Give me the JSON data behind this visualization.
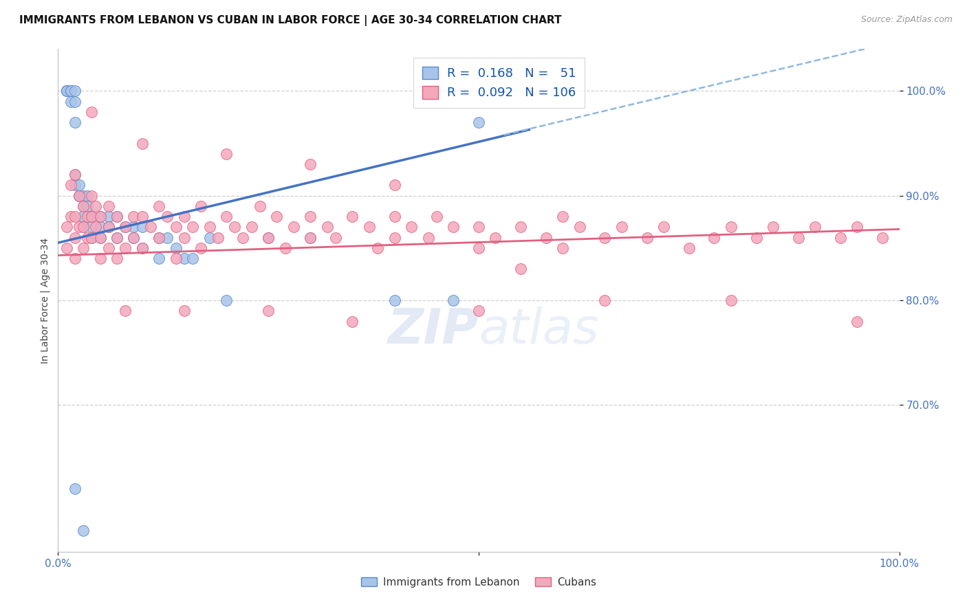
{
  "title": "IMMIGRANTS FROM LEBANON VS CUBAN IN LABOR FORCE | AGE 30-34 CORRELATION CHART",
  "source": "Source: ZipAtlas.com",
  "ylabel": "In Labor Force | Age 30-34",
  "legend_label_1": "Immigrants from Lebanon",
  "legend_label_2": "Cubans",
  "r_lebanon": 0.168,
  "n_lebanon": 51,
  "r_cuban": 0.092,
  "n_cuban": 106,
  "color_lebanon_fill": "#a8c4e8",
  "color_cuban_fill": "#f4a8bc",
  "color_lebanon_edge": "#5588cc",
  "color_cuban_edge": "#e06080",
  "color_lebanon_line": "#4472c4",
  "color_cuban_line": "#e06080",
  "color_dashed": "#90b8e0",
  "watermark": "ZIPatlas",
  "xlim": [
    0.0,
    1.0
  ],
  "ylim": [
    0.56,
    1.04
  ],
  "ytick_positions": [
    0.7,
    0.8,
    0.9,
    1.0
  ],
  "ytick_labels": [
    "70.0%",
    "80.0%",
    "90.0%",
    "100.0%"
  ],
  "xtick_positions": [
    0.0,
    0.5,
    1.0
  ],
  "xtick_labels": [
    "0.0%",
    "",
    "100.0%"
  ],
  "leb_line_x": [
    0.0,
    0.56
  ],
  "leb_line_y": [
    0.855,
    0.963
  ],
  "dashed_line_x": [
    0.53,
    1.0
  ],
  "dashed_line_y": [
    0.958,
    1.048
  ],
  "cub_line_x": [
    0.0,
    1.0
  ],
  "cub_line_y": [
    0.843,
    0.868
  ],
  "background_color": "#ffffff",
  "grid_color": "#d0d0d0",
  "leb_x": [
    0.01,
    0.01,
    0.01,
    0.01,
    0.015,
    0.015,
    0.015,
    0.02,
    0.02,
    0.02,
    0.02,
    0.02,
    0.025,
    0.025,
    0.025,
    0.03,
    0.03,
    0.03,
    0.03,
    0.035,
    0.035,
    0.04,
    0.04,
    0.04,
    0.05,
    0.05,
    0.05,
    0.06,
    0.06,
    0.07,
    0.07,
    0.08,
    0.09,
    0.09,
    0.1,
    0.1,
    0.12,
    0.12,
    0.14,
    0.15,
    0.16,
    0.18,
    0.2,
    0.25,
    0.3,
    0.4,
    0.47,
    0.5,
    0.13,
    0.02,
    0.03
  ],
  "leb_y": [
    1.0,
    1.0,
    1.0,
    1.0,
    1.0,
    1.0,
    0.99,
    1.0,
    0.99,
    0.97,
    0.92,
    0.91,
    0.91,
    0.9,
    0.9,
    0.9,
    0.89,
    0.88,
    0.87,
    0.9,
    0.89,
    0.88,
    0.87,
    0.86,
    0.88,
    0.87,
    0.86,
    0.88,
    0.87,
    0.88,
    0.86,
    0.87,
    0.87,
    0.86,
    0.87,
    0.85,
    0.86,
    0.84,
    0.85,
    0.84,
    0.84,
    0.86,
    0.8,
    0.86,
    0.86,
    0.8,
    0.8,
    0.97,
    0.86,
    0.62,
    0.58
  ],
  "cub_x": [
    0.01,
    0.01,
    0.015,
    0.015,
    0.02,
    0.02,
    0.02,
    0.02,
    0.025,
    0.025,
    0.03,
    0.03,
    0.03,
    0.035,
    0.035,
    0.04,
    0.04,
    0.04,
    0.045,
    0.045,
    0.05,
    0.05,
    0.05,
    0.06,
    0.06,
    0.06,
    0.07,
    0.07,
    0.07,
    0.08,
    0.08,
    0.09,
    0.09,
    0.1,
    0.1,
    0.11,
    0.12,
    0.12,
    0.13,
    0.14,
    0.14,
    0.15,
    0.15,
    0.16,
    0.17,
    0.17,
    0.18,
    0.19,
    0.2,
    0.21,
    0.22,
    0.23,
    0.24,
    0.25,
    0.26,
    0.27,
    0.28,
    0.3,
    0.3,
    0.32,
    0.33,
    0.35,
    0.37,
    0.38,
    0.4,
    0.4,
    0.42,
    0.44,
    0.45,
    0.47,
    0.5,
    0.5,
    0.52,
    0.55,
    0.55,
    0.58,
    0.6,
    0.6,
    0.62,
    0.65,
    0.67,
    0.7,
    0.72,
    0.75,
    0.78,
    0.8,
    0.83,
    0.85,
    0.88,
    0.9,
    0.93,
    0.95,
    0.98,
    0.04,
    0.1,
    0.2,
    0.3,
    0.4,
    0.08,
    0.15,
    0.25,
    0.35,
    0.5,
    0.65,
    0.8,
    0.95
  ],
  "cub_y": [
    0.87,
    0.85,
    0.91,
    0.88,
    0.92,
    0.88,
    0.86,
    0.84,
    0.9,
    0.87,
    0.89,
    0.87,
    0.85,
    0.88,
    0.86,
    0.9,
    0.88,
    0.86,
    0.89,
    0.87,
    0.88,
    0.86,
    0.84,
    0.89,
    0.87,
    0.85,
    0.88,
    0.86,
    0.84,
    0.87,
    0.85,
    0.88,
    0.86,
    0.88,
    0.85,
    0.87,
    0.89,
    0.86,
    0.88,
    0.87,
    0.84,
    0.88,
    0.86,
    0.87,
    0.89,
    0.85,
    0.87,
    0.86,
    0.88,
    0.87,
    0.86,
    0.87,
    0.89,
    0.86,
    0.88,
    0.85,
    0.87,
    0.88,
    0.86,
    0.87,
    0.86,
    0.88,
    0.87,
    0.85,
    0.88,
    0.86,
    0.87,
    0.86,
    0.88,
    0.87,
    0.87,
    0.85,
    0.86,
    0.87,
    0.83,
    0.86,
    0.88,
    0.85,
    0.87,
    0.86,
    0.87,
    0.86,
    0.87,
    0.85,
    0.86,
    0.87,
    0.86,
    0.87,
    0.86,
    0.87,
    0.86,
    0.87,
    0.86,
    0.98,
    0.95,
    0.94,
    0.93,
    0.91,
    0.79,
    0.79,
    0.79,
    0.78,
    0.79,
    0.8,
    0.8,
    0.78
  ],
  "title_fontsize": 11,
  "source_fontsize": 9,
  "tick_fontsize": 11,
  "legend_fontsize": 13
}
